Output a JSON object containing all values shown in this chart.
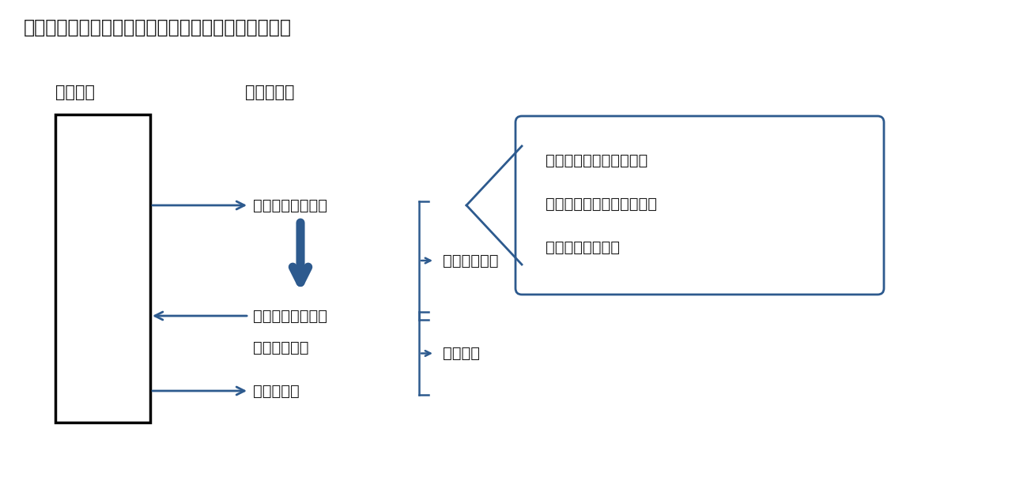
{
  "title": "【図表２】取締役報酬としての新株予約権発行・行使",
  "bg_color": "#ffffff",
  "text_color": "#1a1a1a",
  "arrow_color": "#2d5a8e",
  "box_label_kaisha": "【会社】",
  "box_label_torishimari": "【取締役】",
  "text_hakko": "新株予約権の発行",
  "text_koshi": "新株予約権の行使",
  "text_kenri": "権利行使価額",
  "text_kabushiki": "株式の交付",
  "text_joto": "譲渡禁止期間",
  "text_koshi_kikan": "行使期間",
  "callout_line1": "新株予約権の発行対価は",
  "callout_line2": "取締役の報酬とされるため",
  "callout_line3": "無償で発行される",
  "font_size_title": 17,
  "font_size_label": 15,
  "font_size_text": 14,
  "font_size_callout": 14
}
